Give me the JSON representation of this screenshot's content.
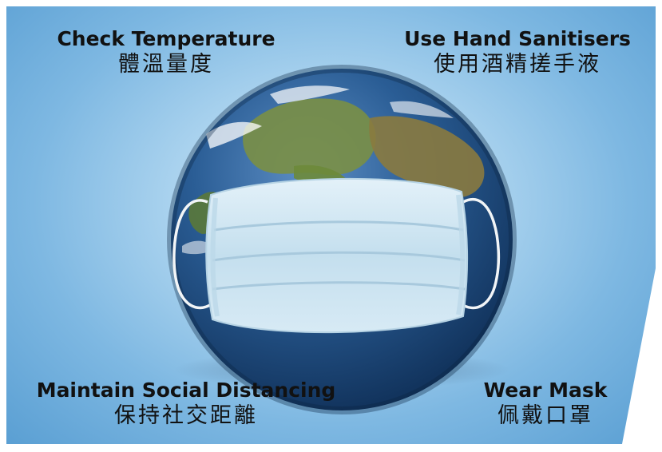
{
  "captions": {
    "top_left": {
      "en": "Check Temperature",
      "zh": "體溫量度"
    },
    "top_right": {
      "en": "Use Hand Sanitisers",
      "zh": "使用酒精搓手液"
    },
    "bottom_left": {
      "en": "Maintain Social Distancing",
      "zh": "保持社交距離"
    },
    "bottom_right": {
      "en": "Wear Mask",
      "zh": "佩戴口罩"
    }
  },
  "colors": {
    "background": "#7eb8e2",
    "ocean": "#1f4f86",
    "land": "#6f8a3c",
    "mask": "#cfe6f3",
    "text": "#111111"
  }
}
